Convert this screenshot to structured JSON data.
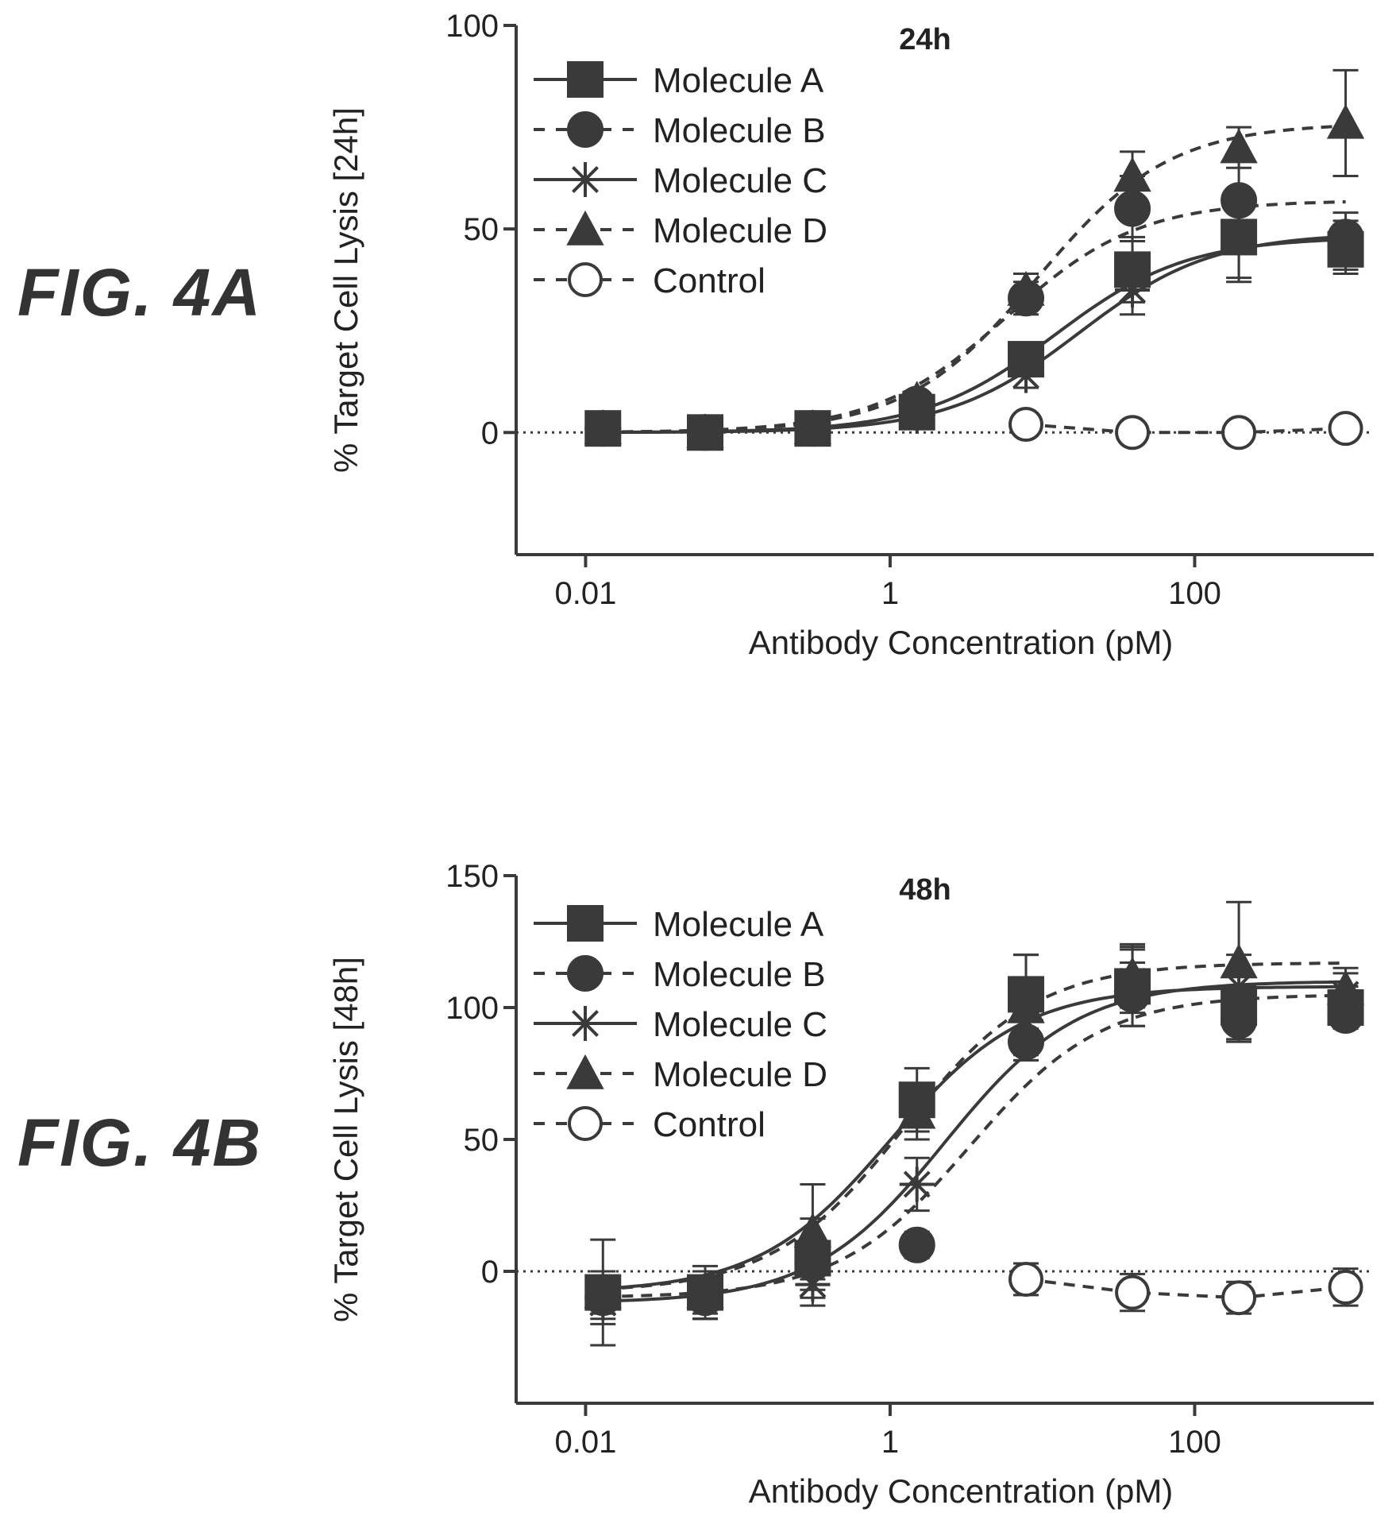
{
  "figures": [
    {
      "label": "FIG. 4A"
    },
    {
      "label": "FIG. 4B"
    }
  ],
  "chart_data": [
    {
      "type": "line",
      "title": "24h",
      "xlabel": "Antibody Concentration (pM)",
      "ylabel": "% Target Cell Lysis [24h]",
      "x_scale": "log",
      "xlim": [
        0.0035,
        1500
      ],
      "ylim": [
        -30,
        100
      ],
      "xticks": [
        {
          "value": 0.01,
          "label": "0.01"
        },
        {
          "value": 1,
          "label": "1"
        },
        {
          "value": 100,
          "label": "100"
        }
      ],
      "yticks": [
        {
          "value": 0,
          "label": "0"
        },
        {
          "value": 50,
          "label": "50"
        },
        {
          "value": 100,
          "label": "100"
        }
      ],
      "reference_line_y": 0,
      "legend_position": "top-left",
      "x": [
        0.013,
        0.061,
        0.31,
        1.5,
        7.8,
        39,
        195,
        980
      ],
      "series": [
        {
          "name": "Molecule A",
          "marker": "square",
          "line": "solid",
          "values": [
            1,
            0,
            1,
            5,
            18,
            40,
            48,
            45
          ],
          "errors": [
            1,
            1,
            1,
            3,
            4,
            8,
            11,
            6
          ]
        },
        {
          "name": "Molecule B",
          "marker": "circle",
          "line": "dashed",
          "values": [
            1,
            0,
            1,
            7,
            33,
            55,
            57,
            48
          ],
          "errors": [
            1,
            1,
            1,
            2,
            4,
            8,
            10,
            6
          ]
        },
        {
          "name": "Molecule C",
          "marker": "star",
          "line": "solid",
          "values": [
            1,
            0,
            1,
            4,
            14,
            35,
            49,
            46
          ],
          "errors": [
            1,
            1,
            1,
            3,
            3,
            6,
            11,
            6
          ]
        },
        {
          "name": "Molecule D",
          "marker": "triangle",
          "line": "dashed",
          "values": [
            1,
            0,
            1,
            8,
            35,
            63,
            70,
            76
          ],
          "errors": [
            1,
            1,
            1,
            2,
            4,
            6,
            5,
            13
          ]
        },
        {
          "name": "Control",
          "marker": "open-circle",
          "line": "dashed",
          "values": [
            null,
            null,
            null,
            null,
            2,
            0,
            0,
            1
          ],
          "errors": [
            null,
            null,
            null,
            null,
            0,
            0,
            0,
            0
          ]
        }
      ]
    },
    {
      "type": "line",
      "title": "48h",
      "xlabel": "Antibody Concentration (pM)",
      "ylabel": "% Target Cell Lysis [48h]",
      "x_scale": "log",
      "xlim": [
        0.0035,
        1500
      ],
      "ylim": [
        -50,
        150
      ],
      "xticks": [
        {
          "value": 0.01,
          "label": "0.01"
        },
        {
          "value": 1,
          "label": "1"
        },
        {
          "value": 100,
          "label": "100"
        }
      ],
      "yticks": [
        {
          "value": 0,
          "label": "0"
        },
        {
          "value": 50,
          "label": "50"
        },
        {
          "value": 100,
          "label": "100"
        },
        {
          "value": 150,
          "label": "150"
        }
      ],
      "reference_line_y": 0,
      "legend_position": "top-left",
      "x": [
        0.013,
        0.061,
        0.31,
        1.5,
        7.8,
        39,
        195,
        980
      ],
      "series": [
        {
          "name": "Molecule A",
          "marker": "square",
          "line": "solid",
          "values": [
            -8,
            -8,
            5,
            65,
            105,
            108,
            100,
            100
          ],
          "errors": [
            20,
            10,
            15,
            12,
            15,
            15,
            12,
            8
          ]
        },
        {
          "name": "Molecule B",
          "marker": "circle",
          "line": "dashed",
          "values": [
            -10,
            -10,
            3,
            10,
            87,
            105,
            95,
            97
          ],
          "errors": [
            8,
            8,
            10,
            5,
            5,
            12,
            8,
            5
          ]
        },
        {
          "name": "Molecule C",
          "marker": "star",
          "line": "solid",
          "values": [
            -12,
            -10,
            -5,
            33,
            95,
            110,
            108,
            105
          ],
          "errors": [
            8,
            8,
            8,
            10,
            15,
            12,
            12,
            8
          ]
        },
        {
          "name": "Molecule D",
          "marker": "triangle",
          "line": "dashed",
          "values": [
            -8,
            -8,
            15,
            60,
            100,
            112,
            117,
            107
          ],
          "errors": [
            8,
            8,
            18,
            10,
            20,
            12,
            23,
            8
          ]
        },
        {
          "name": "Control",
          "marker": "open-circle",
          "line": "dashed",
          "values": [
            null,
            null,
            null,
            null,
            -3,
            -8,
            -10,
            -6
          ],
          "errors": [
            null,
            null,
            null,
            null,
            6,
            7,
            6,
            7
          ]
        }
      ]
    }
  ]
}
